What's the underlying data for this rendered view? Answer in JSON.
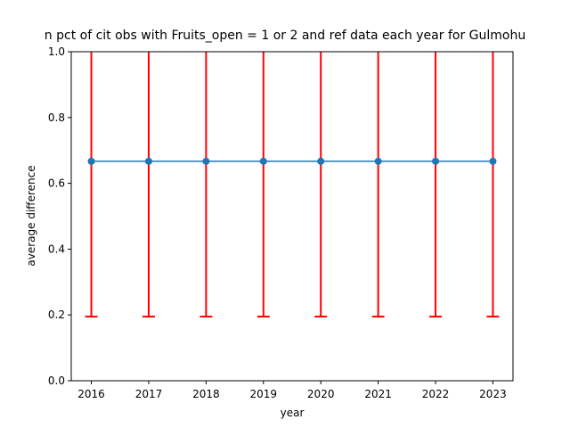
{
  "chart_data": {
    "type": "line",
    "title": "n pct of cit obs with Fruits_open = 1 or 2 and ref data each year for Gulmohu",
    "xlabel": "year",
    "ylabel": "average difference",
    "x": [
      2016,
      2017,
      2018,
      2019,
      2020,
      2021,
      2022,
      2023
    ],
    "xticks": [
      "2016",
      "2017",
      "2018",
      "2019",
      "2020",
      "2021",
      "2022",
      "2023"
    ],
    "yticks": [
      "0.0",
      "0.2",
      "0.4",
      "0.6",
      "0.8",
      "1.0"
    ],
    "ylim": [
      0,
      1
    ],
    "xlim": [
      2015.65,
      2023.35
    ],
    "grid": false,
    "series": [
      {
        "values": [
          0.667,
          0.667,
          0.667,
          0.667,
          0.667,
          0.667,
          0.667,
          0.667
        ],
        "error_low": [
          0.195,
          0.195,
          0.195,
          0.195,
          0.195,
          0.195,
          0.195,
          0.195
        ],
        "error_high": [
          1.14,
          1.14,
          1.14,
          1.14,
          1.14,
          1.14,
          1.14,
          1.14
        ],
        "color": "#1f77b4",
        "error_color": "#ff0000"
      }
    ]
  }
}
